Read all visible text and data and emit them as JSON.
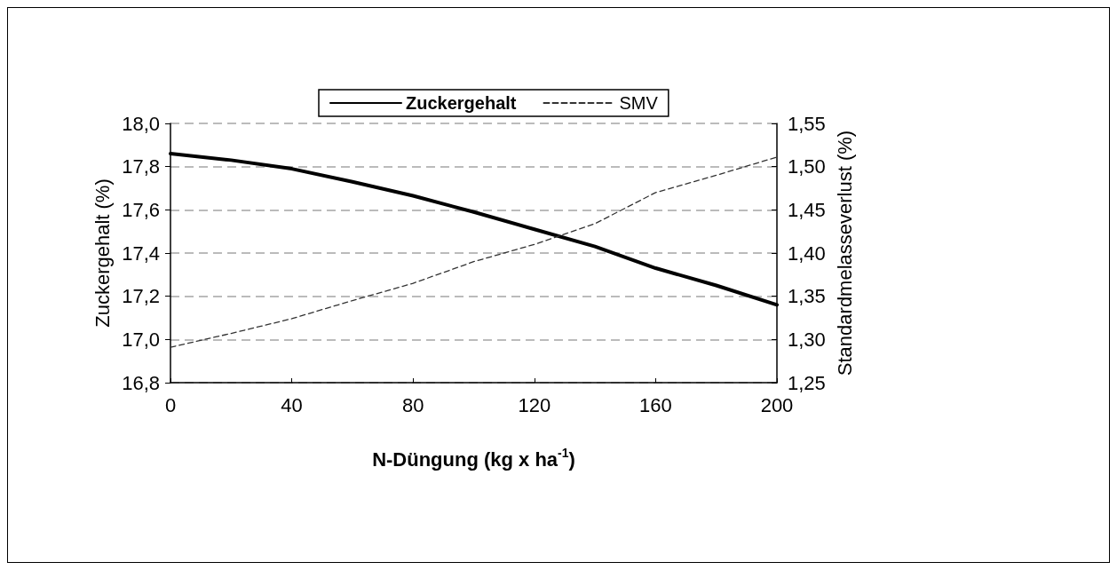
{
  "chart_data": {
    "type": "line",
    "xlabel": "N-Düngung (kg x ha$^{-1}$)",
    "ylabel": "Zuckergehalt (%)",
    "y2label": "Standardmelasseverlust (%)",
    "x": [
      0,
      20,
      40,
      60,
      80,
      100,
      120,
      140,
      160,
      180,
      200
    ],
    "series": [
      {
        "name": "Zuckergehalt",
        "color": "#000000",
        "line_style": "solid",
        "values": [
          17.86,
          17.83,
          17.79,
          17.73,
          17.665,
          17.59,
          17.51,
          17.43,
          17.33,
          17.25,
          17.16
        ]
      },
      {
        "name": "SMV",
        "color": "#333333",
        "line_style": "dashed",
        "axis": "y2",
        "values": [
          1.291,
          1.307,
          1.324,
          1.345,
          1.365,
          1.39,
          1.41,
          1.434,
          1.47,
          1.49,
          1.511
        ]
      }
    ],
    "xlim": [
      0,
      200
    ],
    "xticks": [
      0,
      40,
      80,
      120,
      160,
      200
    ],
    "ylim": [
      16.8,
      18.0
    ],
    "yticks": [
      {
        "value": 16.8,
        "label": "16,8"
      },
      {
        "value": 17.0,
        "label": "17,0"
      },
      {
        "value": 17.2,
        "label": "17,2"
      },
      {
        "value": 17.4,
        "label": "17,4"
      },
      {
        "value": 17.6,
        "label": "17,6"
      },
      {
        "value": 17.8,
        "label": "17,8"
      },
      {
        "value": 18.0,
        "label": "18,0"
      }
    ],
    "y2lim": [
      1.25,
      1.55
    ],
    "y2ticks": [
      {
        "value": 1.25,
        "label": "1,25"
      },
      {
        "value": 1.3,
        "label": "1,30"
      },
      {
        "value": 1.35,
        "label": "1,35"
      },
      {
        "value": 1.4,
        "label": "1,40"
      },
      {
        "value": 1.45,
        "label": "1,45"
      },
      {
        "value": 1.5,
        "label": "1,50"
      },
      {
        "value": 1.55,
        "label": "1,55"
      }
    ],
    "grid": "y",
    "legend": "top",
    "marker": "none"
  }
}
